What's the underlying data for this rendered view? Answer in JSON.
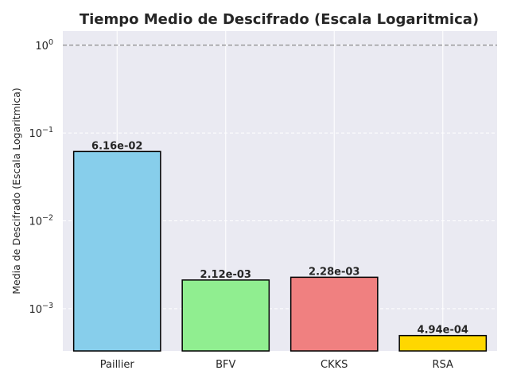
{
  "chart_data": {
    "type": "bar",
    "title": "Tiempo Medio de Descifrado (Escala Logaritmica)",
    "xlabel": "",
    "ylabel": "Media de Descifrado (Escala Logaritmica)",
    "yscale": "log",
    "ylim": [
      0.00033,
      1.45
    ],
    "categories": [
      "Paillier",
      "BFV",
      "CKKS",
      "RSA"
    ],
    "values": [
      0.0616,
      0.00212,
      0.00228,
      0.000494
    ],
    "value_labels": [
      "6.16e-02",
      "2.12e-03",
      "2.28e-03",
      "4.94e-04"
    ],
    "colors": [
      "#87CEEB",
      "#90EE90",
      "#F08080",
      "#FFD700"
    ],
    "edge_color": "#000000",
    "reference_line": {
      "y": 1,
      "style": "dashed",
      "color": "#808080"
    },
    "grid": true,
    "background": "#EAEAF2",
    "ytick_values": [
      0.001,
      0.01,
      0.1,
      1
    ],
    "ytick_labels": [
      {
        "base": "10",
        "exp": "−3"
      },
      {
        "base": "10",
        "exp": "−2"
      },
      {
        "base": "10",
        "exp": "−1"
      },
      {
        "base": "10",
        "exp": "0"
      }
    ]
  }
}
